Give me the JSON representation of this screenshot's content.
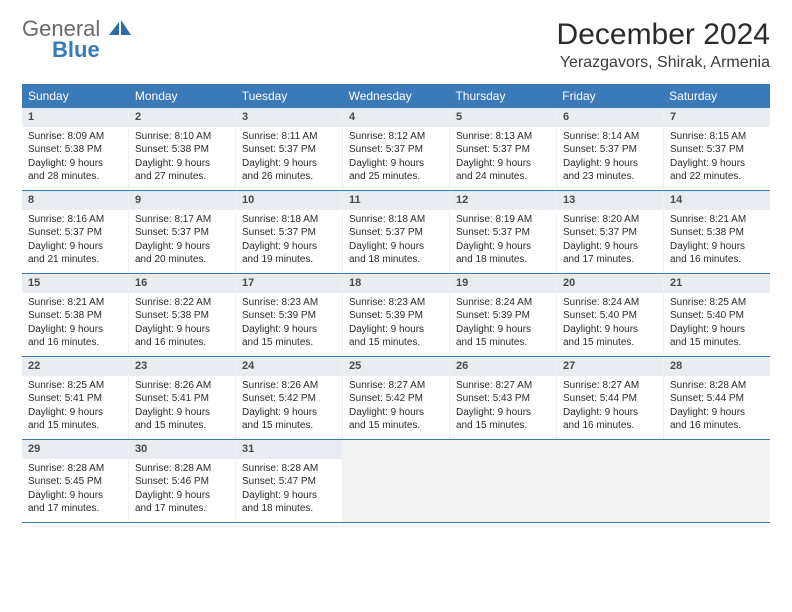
{
  "logo": {
    "line1": "General",
    "line2": "Blue"
  },
  "title": "December 2024",
  "location": "Yerazgavors, Shirak, Armenia",
  "colors": {
    "header_bg": "#3b7ab8",
    "header_text": "#ffffff",
    "border": "#3b7ab8",
    "daynum_bg": "#e9edf1",
    "empty_bg": "#f3f3f3",
    "text": "#2b2b2b"
  },
  "weekdays": [
    "Sunday",
    "Monday",
    "Tuesday",
    "Wednesday",
    "Thursday",
    "Friday",
    "Saturday"
  ],
  "grid": {
    "rows": 5,
    "cols": 7
  },
  "days": [
    {
      "n": "1",
      "sunrise": "8:09 AM",
      "sunset": "5:38 PM",
      "dl": "9 hours and 28 minutes."
    },
    {
      "n": "2",
      "sunrise": "8:10 AM",
      "sunset": "5:38 PM",
      "dl": "9 hours and 27 minutes."
    },
    {
      "n": "3",
      "sunrise": "8:11 AM",
      "sunset": "5:37 PM",
      "dl": "9 hours and 26 minutes."
    },
    {
      "n": "4",
      "sunrise": "8:12 AM",
      "sunset": "5:37 PM",
      "dl": "9 hours and 25 minutes."
    },
    {
      "n": "5",
      "sunrise": "8:13 AM",
      "sunset": "5:37 PM",
      "dl": "9 hours and 24 minutes."
    },
    {
      "n": "6",
      "sunrise": "8:14 AM",
      "sunset": "5:37 PM",
      "dl": "9 hours and 23 minutes."
    },
    {
      "n": "7",
      "sunrise": "8:15 AM",
      "sunset": "5:37 PM",
      "dl": "9 hours and 22 minutes."
    },
    {
      "n": "8",
      "sunrise": "8:16 AM",
      "sunset": "5:37 PM",
      "dl": "9 hours and 21 minutes."
    },
    {
      "n": "9",
      "sunrise": "8:17 AM",
      "sunset": "5:37 PM",
      "dl": "9 hours and 20 minutes."
    },
    {
      "n": "10",
      "sunrise": "8:18 AM",
      "sunset": "5:37 PM",
      "dl": "9 hours and 19 minutes."
    },
    {
      "n": "11",
      "sunrise": "8:18 AM",
      "sunset": "5:37 PM",
      "dl": "9 hours and 18 minutes."
    },
    {
      "n": "12",
      "sunrise": "8:19 AM",
      "sunset": "5:37 PM",
      "dl": "9 hours and 18 minutes."
    },
    {
      "n": "13",
      "sunrise": "8:20 AM",
      "sunset": "5:37 PM",
      "dl": "9 hours and 17 minutes."
    },
    {
      "n": "14",
      "sunrise": "8:21 AM",
      "sunset": "5:38 PM",
      "dl": "9 hours and 16 minutes."
    },
    {
      "n": "15",
      "sunrise": "8:21 AM",
      "sunset": "5:38 PM",
      "dl": "9 hours and 16 minutes."
    },
    {
      "n": "16",
      "sunrise": "8:22 AM",
      "sunset": "5:38 PM",
      "dl": "9 hours and 16 minutes."
    },
    {
      "n": "17",
      "sunrise": "8:23 AM",
      "sunset": "5:39 PM",
      "dl": "9 hours and 15 minutes."
    },
    {
      "n": "18",
      "sunrise": "8:23 AM",
      "sunset": "5:39 PM",
      "dl": "9 hours and 15 minutes."
    },
    {
      "n": "19",
      "sunrise": "8:24 AM",
      "sunset": "5:39 PM",
      "dl": "9 hours and 15 minutes."
    },
    {
      "n": "20",
      "sunrise": "8:24 AM",
      "sunset": "5:40 PM",
      "dl": "9 hours and 15 minutes."
    },
    {
      "n": "21",
      "sunrise": "8:25 AM",
      "sunset": "5:40 PM",
      "dl": "9 hours and 15 minutes."
    },
    {
      "n": "22",
      "sunrise": "8:25 AM",
      "sunset": "5:41 PM",
      "dl": "9 hours and 15 minutes."
    },
    {
      "n": "23",
      "sunrise": "8:26 AM",
      "sunset": "5:41 PM",
      "dl": "9 hours and 15 minutes."
    },
    {
      "n": "24",
      "sunrise": "8:26 AM",
      "sunset": "5:42 PM",
      "dl": "9 hours and 15 minutes."
    },
    {
      "n": "25",
      "sunrise": "8:27 AM",
      "sunset": "5:42 PM",
      "dl": "9 hours and 15 minutes."
    },
    {
      "n": "26",
      "sunrise": "8:27 AM",
      "sunset": "5:43 PM",
      "dl": "9 hours and 15 minutes."
    },
    {
      "n": "27",
      "sunrise": "8:27 AM",
      "sunset": "5:44 PM",
      "dl": "9 hours and 16 minutes."
    },
    {
      "n": "28",
      "sunrise": "8:28 AM",
      "sunset": "5:44 PM",
      "dl": "9 hours and 16 minutes."
    },
    {
      "n": "29",
      "sunrise": "8:28 AM",
      "sunset": "5:45 PM",
      "dl": "9 hours and 17 minutes."
    },
    {
      "n": "30",
      "sunrise": "8:28 AM",
      "sunset": "5:46 PM",
      "dl": "9 hours and 17 minutes."
    },
    {
      "n": "31",
      "sunrise": "8:28 AM",
      "sunset": "5:47 PM",
      "dl": "9 hours and 18 minutes."
    }
  ],
  "labels": {
    "sunrise_prefix": "Sunrise: ",
    "sunset_prefix": "Sunset: ",
    "daylight_prefix": "Daylight: "
  }
}
